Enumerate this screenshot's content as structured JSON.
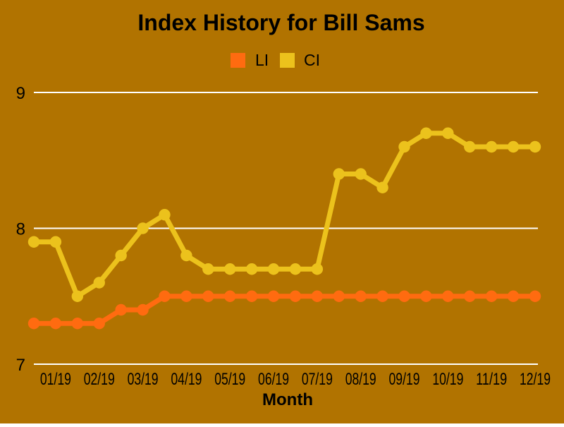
{
  "page": {
    "background_color": "#B17300"
  },
  "chart": {
    "title": "Index History for Bill Sams",
    "x_axis_title": "Month",
    "legend": [
      {
        "label": "LI",
        "color": "#FF6B10"
      },
      {
        "label": "CI",
        "color": "#ECC21C"
      }
    ],
    "gridline_color": "#FFFFFF",
    "text_color": "#000000"
  },
  "chart_data": {
    "type": "line",
    "title": "Index History for Bill Sams",
    "xlabel": "Month",
    "ylabel": "",
    "ylim": [
      7,
      9
    ],
    "yticks": [
      9,
      8,
      7
    ],
    "grid": true,
    "legend_position": "top-center",
    "points_per_month": 2,
    "x_tick_labels": [
      "01/19",
      "02/19",
      "03/19",
      "04/19",
      "05/19",
      "06/19",
      "07/19",
      "08/19",
      "09/19",
      "10/19",
      "11/19",
      "12/19"
    ],
    "x_tick_point_indices": [
      1,
      3,
      5,
      7,
      9,
      11,
      13,
      15,
      17,
      19,
      21,
      23
    ],
    "series": [
      {
        "name": "LI",
        "color": "#FF6B10",
        "values": [
          7.3,
          7.3,
          7.3,
          7.3,
          7.4,
          7.4,
          7.5,
          7.5,
          7.5,
          7.5,
          7.5,
          7.5,
          7.5,
          7.5,
          7.5,
          7.5,
          7.5,
          7.5,
          7.5,
          7.5,
          7.5,
          7.5,
          7.5,
          7.5
        ]
      },
      {
        "name": "CI",
        "color": "#ECC21C",
        "values": [
          7.9,
          7.9,
          7.5,
          7.6,
          7.8,
          8.0,
          8.1,
          7.8,
          7.7,
          7.7,
          7.7,
          7.7,
          7.7,
          7.7,
          8.4,
          8.4,
          8.3,
          8.6,
          8.7,
          8.7,
          8.6,
          8.6,
          8.6,
          8.6
        ]
      }
    ]
  }
}
